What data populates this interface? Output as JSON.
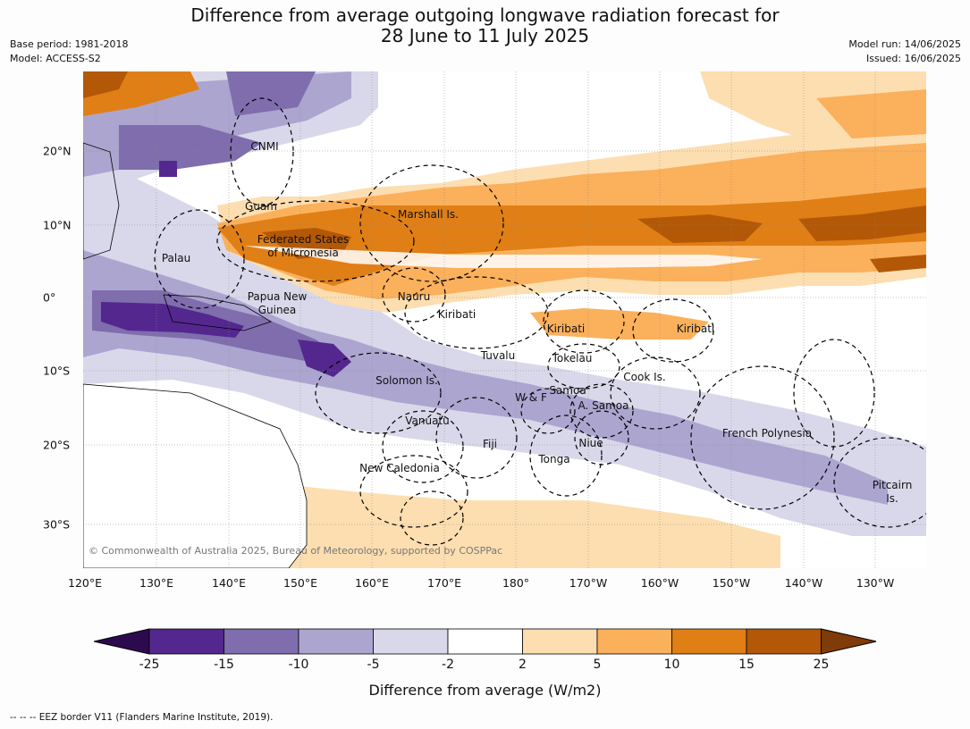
{
  "title_line1": "Difference from average outgoing longwave radiation forecast for",
  "title_line2": "28 June to 11 July 2025",
  "meta_left": [
    "Base period: 1981-2018",
    "Model: ACCESS-S2"
  ],
  "meta_right": [
    "Model run: 14/06/2025",
    "Issued: 16/06/2025"
  ],
  "lon_labels": [
    "120°E",
    "130°E",
    "140°E",
    "150°E",
    "160°E",
    "170°E",
    "180°",
    "170°W",
    "160°W",
    "150°W",
    "140°W",
    "130°W"
  ],
  "lat_labels": [
    "20°N",
    "10°N",
    "0°",
    "10°S",
    "20°S",
    "30°S"
  ],
  "region_labels": [
    {
      "name": "CNMI"
    },
    {
      "name": "Guam"
    },
    {
      "name": "Marshall Is."
    },
    {
      "name": "Federated States"
    },
    {
      "name": "of Micronesia"
    },
    {
      "name": "Palau"
    },
    {
      "name": "Papua New"
    },
    {
      "name": "Guinea"
    },
    {
      "name": "Nauru"
    },
    {
      "name": "Kiribati"
    },
    {
      "name": "Kiribati"
    },
    {
      "name": "Kiribati"
    },
    {
      "name": "Tuvalu"
    },
    {
      "name": "Tokelau"
    },
    {
      "name": "Cook Is."
    },
    {
      "name": "Solomon Is."
    },
    {
      "name": "Samoa"
    },
    {
      "name": "W & F"
    },
    {
      "name": "A. Samoa"
    },
    {
      "name": "Vanuatu"
    },
    {
      "name": "Fiji"
    },
    {
      "name": "Niue"
    },
    {
      "name": "Tonga"
    },
    {
      "name": "French Polynesia"
    },
    {
      "name": "New Caledonia"
    },
    {
      "name": "Pitcairn"
    },
    {
      "name": "Is."
    }
  ],
  "copyright": "© Commonwealth of Australia 2025, Bureau of Meteorology, supported by COSPPac",
  "colorbar": {
    "labels": [
      "-25",
      "-15",
      "-10",
      "-5",
      "-2",
      "2",
      "5",
      "10",
      "15",
      "25"
    ],
    "colors": [
      "#2d0a4e",
      "#54278f",
      "#7f6dad",
      "#aca5d0",
      "#d9d8ea",
      "#ffffff",
      "#fddeb0",
      "#fbb05c",
      "#e07f16",
      "#b35806",
      "#7f3b08"
    ],
    "title": "Difference from average (W/m2)"
  },
  "footer": "--  --  -- EEZ border V11 (Flanders Marine Institute, 2019)."
}
